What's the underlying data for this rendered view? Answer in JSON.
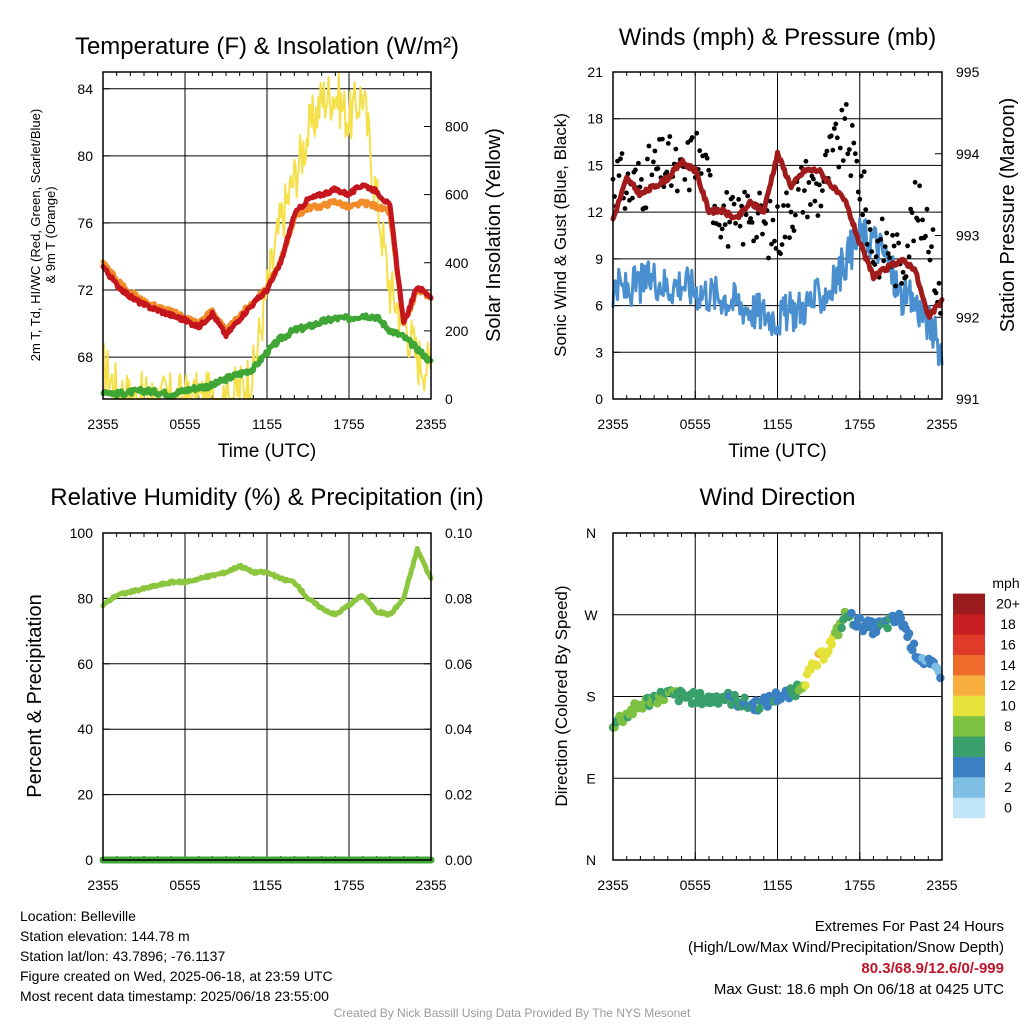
{
  "chart_data": [
    {
      "type": "line",
      "title": "Temperature (F) & Insolation (W/m²)",
      "ylabel_left": "2m T, Td, HI/WC (Red, Green, Scarlet/Blue) & 9m T (Orange)",
      "ylabel_right": "Solar Insolation (Yellow)",
      "xlabel": "Time (UTC)",
      "x_ticks": [
        "2355",
        "0555",
        "1155",
        "1755",
        "2355"
      ],
      "ylim_left": [
        65.5,
        85
      ],
      "y_ticks_left": [
        68,
        72,
        76,
        80,
        84
      ],
      "ylim_right": [
        0,
        960
      ],
      "y_ticks_right": [
        0,
        200,
        400,
        600,
        800
      ],
      "x_hours": [
        0,
        1,
        2,
        3,
        4,
        5,
        6,
        7,
        8,
        9,
        10,
        11,
        12,
        13,
        14,
        15,
        16,
        17,
        18,
        19,
        20,
        21,
        22,
        23,
        24
      ],
      "series": [
        {
          "name": "2m T",
          "color": "#c4161c",
          "axis": "left",
          "values": [
            73.4,
            72.3,
            71.6,
            71.1,
            70.8,
            70.5,
            70.2,
            69.8,
            70.6,
            69.3,
            70.3,
            71.2,
            72.0,
            73.6,
            76.5,
            77.4,
            77.7,
            78.0,
            77.7,
            78.3,
            77.9,
            77.0,
            70.0,
            72.2,
            71.6
          ]
        },
        {
          "name": "Td",
          "color": "#3fa535",
          "axis": "left",
          "values": [
            66.0,
            65.8,
            65.9,
            66.0,
            65.9,
            65.8,
            66.0,
            66.2,
            66.3,
            66.7,
            67.0,
            67.3,
            68.3,
            69.1,
            69.6,
            69.8,
            70.1,
            70.3,
            70.3,
            70.5,
            70.4,
            69.6,
            69.2,
            68.5,
            67.7
          ]
        },
        {
          "name": "9m T",
          "color": "#f28c28",
          "axis": "left",
          "values": [
            73.7,
            72.6,
            71.9,
            71.3,
            71.0,
            70.7,
            70.4,
            70.0,
            70.8,
            69.5,
            70.5,
            71.3,
            72.1,
            73.7,
            76.3,
            76.9,
            77.0,
            77.3,
            76.9,
            77.2,
            77.0,
            76.6,
            69.9,
            72.0,
            71.6
          ]
        },
        {
          "name": "Solar Insolation",
          "color": "#f5e04a",
          "axis": "right",
          "values": [
            100,
            30,
            0,
            0,
            0,
            0,
            0,
            0,
            0,
            0,
            30,
            80,
            320,
            520,
            650,
            780,
            880,
            900,
            820,
            900,
            600,
            320,
            240,
            120,
            90
          ]
        }
      ]
    },
    {
      "type": "line",
      "title": "Winds (mph) & Pressure (mb)",
      "ylabel_left": "Sonic Wind & Gust (Blue, Black)",
      "ylabel_right": "Station Pressure (Maroon)",
      "xlabel": "Time (UTC)",
      "x_ticks": [
        "2355",
        "0555",
        "1155",
        "1755",
        "2355"
      ],
      "ylim_left": [
        0,
        21
      ],
      "y_ticks_left": [
        0,
        3,
        6,
        9,
        12,
        15,
        18,
        21
      ],
      "ylim_right": [
        991,
        995
      ],
      "y_ticks_right": [
        991,
        992,
        993,
        994,
        995
      ],
      "x_hours": [
        0,
        1,
        2,
        3,
        4,
        5,
        6,
        7,
        8,
        9,
        10,
        11,
        12,
        13,
        14,
        15,
        16,
        17,
        18,
        19,
        20,
        21,
        22,
        23,
        24
      ],
      "series": [
        {
          "name": "Sonic Wind",
          "color": "#4a90d0",
          "axis": "left",
          "values": [
            7.2,
            7.0,
            7.4,
            7.8,
            7.2,
            7.5,
            7.0,
            6.8,
            6.6,
            6.2,
            5.8,
            5.5,
            5.2,
            5.6,
            6.0,
            6.5,
            7.2,
            9.0,
            10.5,
            10.3,
            9.0,
            6.5,
            6.2,
            5.0,
            3.0
          ]
        },
        {
          "name": "Pressure",
          "color": "#a01c1c",
          "axis": "right",
          "values": [
            993.2,
            993.7,
            993.5,
            993.6,
            993.7,
            993.9,
            993.8,
            993.3,
            993.3,
            993.2,
            993.4,
            993.3,
            994.0,
            993.6,
            993.8,
            993.8,
            993.6,
            993.4,
            992.9,
            992.5,
            992.6,
            992.7,
            992.6,
            992.0,
            992.2
          ]
        },
        {
          "name": "Gust",
          "color": "#000000",
          "axis": "left",
          "style": "dots",
          "values": [
            14.5,
            13.5,
            13.9,
            14.6,
            15.1,
            14.0,
            16.0,
            13.6,
            12.1,
            10.8,
            12.5,
            11.0,
            10.8,
            12.4,
            13.8,
            13.2,
            15.7,
            17.0,
            14.2,
            9.5,
            10.0,
            8.5,
            12.0,
            11.5,
            5.0
          ]
        }
      ]
    },
    {
      "type": "line",
      "title": "Relative Humidity (%) & Precipitation (in)",
      "ylabel_left": "Percent & Precipitation",
      "ylabel_right": "",
      "x_ticks": [
        "2355",
        "0555",
        "1155",
        "1755",
        "2355"
      ],
      "ylim_left": [
        0,
        100
      ],
      "y_ticks_left": [
        0,
        20,
        40,
        60,
        80,
        100
      ],
      "ylim_right": [
        0,
        0.1
      ],
      "y_ticks_right": [
        "0.00",
        "0.02",
        "0.04",
        "0.06",
        "0.08",
        "0.10"
      ],
      "x_hours": [
        0,
        1,
        2,
        3,
        4,
        5,
        6,
        7,
        8,
        9,
        10,
        11,
        12,
        13,
        14,
        15,
        16,
        17,
        18,
        19,
        20,
        21,
        22,
        23,
        24
      ],
      "series": [
        {
          "name": "Relative Humidity",
          "color": "#8cc63f",
          "axis": "left",
          "values": [
            78,
            81,
            82,
            83,
            84,
            85,
            85,
            86,
            87,
            88,
            90,
            88,
            88,
            86,
            85,
            80,
            77,
            75,
            78,
            81,
            76,
            75,
            80,
            95,
            86
          ]
        },
        {
          "name": "Precipitation",
          "color": "#3fa535",
          "axis": "right",
          "values": [
            0,
            0,
            0,
            0,
            0,
            0,
            0,
            0,
            0,
            0,
            0,
            0,
            0,
            0,
            0,
            0,
            0,
            0,
            0,
            0,
            0,
            0,
            0,
            0,
            0
          ]
        }
      ]
    },
    {
      "type": "scatter",
      "title": "Wind Direction",
      "ylabel_left": "Direction (Colored By Speed)",
      "x_ticks": [
        "2355",
        "0555",
        "1155",
        "1755",
        "2355"
      ],
      "y_tick_labels": [
        "N",
        "E",
        "S",
        "W",
        "N"
      ],
      "ylim_degrees": [
        0,
        360
      ],
      "colorbar_unit": "mph",
      "colorbar_labels": [
        "0",
        "2",
        "4",
        "6",
        "8",
        "10",
        "12",
        "14",
        "16",
        "18",
        "20+"
      ],
      "colorbar_colors": [
        "#bfe6f8",
        "#7fbfe5",
        "#3a80c3",
        "#3aa06b",
        "#7cc142",
        "#e5e23a",
        "#f7ae3c",
        "#ef6b2a",
        "#e03a2a",
        "#c81e22",
        "#9b1b1e"
      ],
      "x_hours": [
        0,
        1,
        2,
        3,
        4,
        5,
        6,
        7,
        8,
        9,
        10,
        11,
        12,
        13,
        14,
        15,
        16,
        17,
        18,
        19,
        20,
        21,
        22,
        23,
        24
      ],
      "direction_deg": [
        150,
        160,
        170,
        178,
        182,
        180,
        178,
        176,
        180,
        175,
        170,
        172,
        180,
        182,
        198,
        220,
        240,
        270,
        260,
        255,
        260,
        266,
        230,
        215,
        205
      ],
      "speed_mph": [
        7,
        7,
        8,
        7,
        7,
        6,
        6,
        6,
        6,
        5,
        5,
        5,
        4,
        6,
        9,
        11,
        10,
        6,
        4,
        4,
        5,
        4,
        4,
        3,
        3
      ]
    }
  ],
  "info": {
    "location": "Location: Belleville",
    "elevation": "Station elevation: 144.78 m",
    "latlon": "Station lat/lon: 43.7896; -76.1137",
    "created": "Figure created on Wed, 2025-06-18, at 23:59 UTC",
    "recent": "Most recent data timestamp: 2025/06/18 23:55:00"
  },
  "extremes": {
    "heading": "Extremes For Past 24 Hours",
    "subheading": "(High/Low/Max Wind/Precipitation/Snow Depth)",
    "values": "80.3/68.9/12.6/0/-999",
    "gust": "Max Gust: 18.6 mph On 06/18 at 0425 UTC"
  },
  "credit": "Created By Nick Bassill Using Data Provided By The NYS Mesonet"
}
